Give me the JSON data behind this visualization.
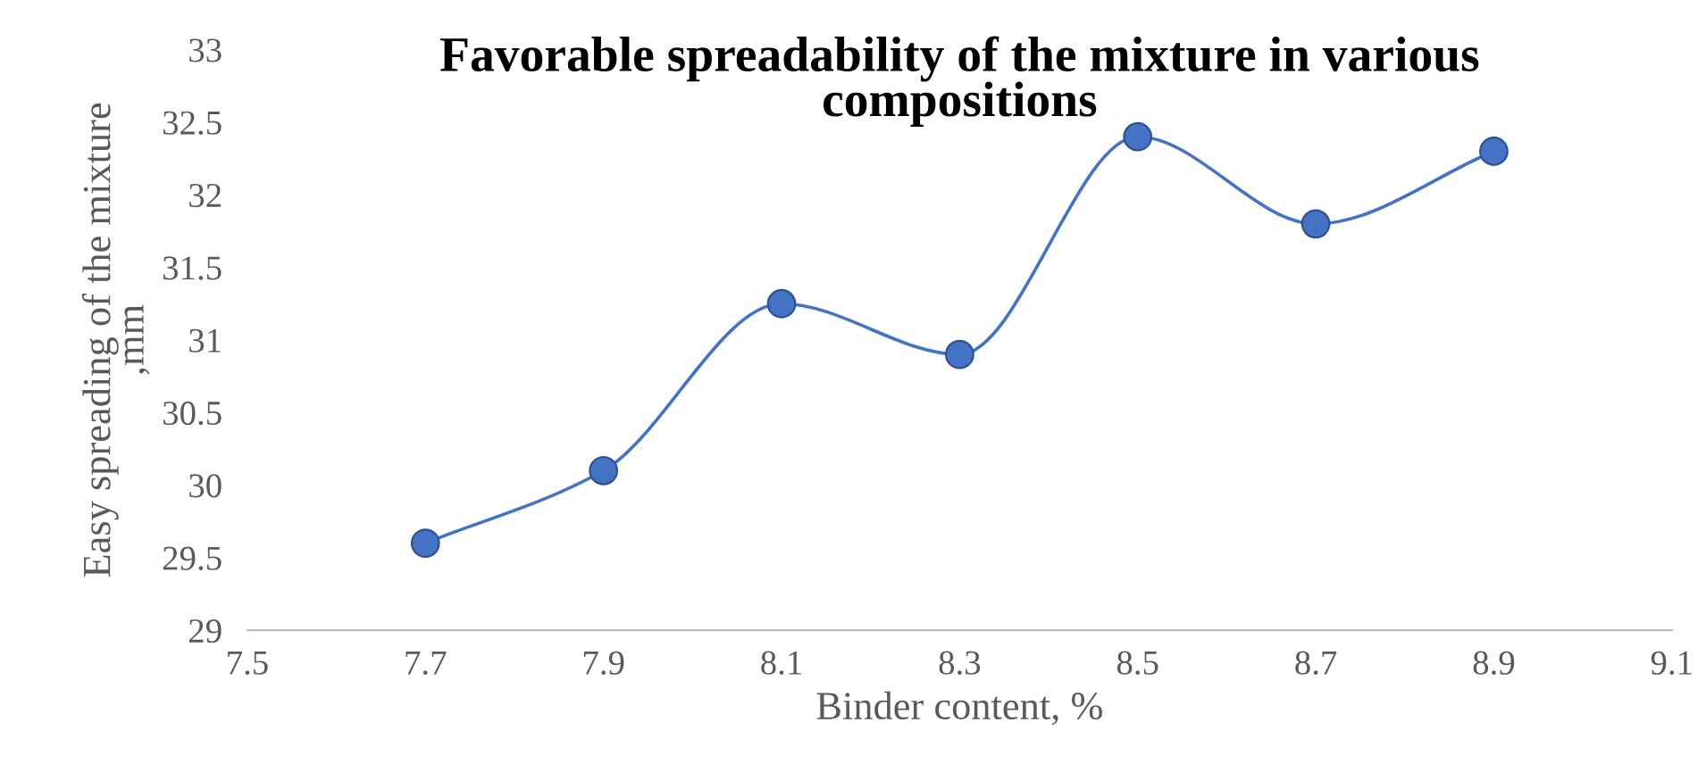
{
  "chart_data": {
    "type": "line",
    "title": "Favorable spreadability of the mixture in various\ncompositions",
    "xlabel": "Binder content, %",
    "ylabel": "Easy spreading of the mixture\n,mm",
    "x": [
      7.7,
      7.9,
      8.1,
      8.3,
      8.5,
      8.7,
      8.9
    ],
    "series": [
      {
        "color": "#4472c4",
        "values": [
          29.6,
          30.1,
          31.25,
          30.9,
          32.4,
          31.8,
          32.3
        ]
      }
    ],
    "xlim": [
      7.5,
      9.1
    ],
    "xticks": [
      7.5,
      7.7,
      7.9,
      8.1,
      8.3,
      8.5,
      8.7,
      8.9,
      9.1
    ],
    "ylim": [
      29,
      33
    ],
    "yticks": [
      29,
      29.5,
      30,
      30.5,
      31,
      31.5,
      32,
      32.5,
      33
    ],
    "grid": false,
    "marker": "circle",
    "line_style": "solid"
  }
}
